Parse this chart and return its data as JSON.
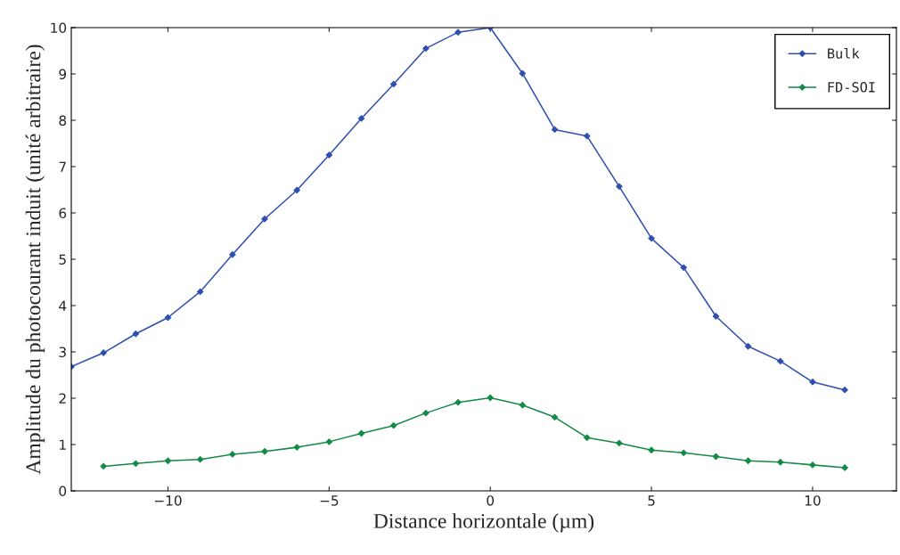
{
  "chart_data": {
    "type": "line",
    "xlabel": "Distance horizontale (µm)",
    "ylabel": "Amplitude du photocourant induit (unité arbitraire)",
    "xlim": [
      -13,
      12.6
    ],
    "ylim": [
      0,
      10
    ],
    "xticks": [
      {
        "value": -10,
        "label": "−10"
      },
      {
        "value": -5,
        "label": "−5"
      },
      0,
      5,
      10
    ],
    "yticks": [
      0,
      1,
      2,
      3,
      4,
      5,
      6,
      7,
      8,
      9,
      10
    ],
    "grid": false,
    "legend": "top right",
    "marker": "diamond",
    "line_style": "solid",
    "series": [
      {
        "name": "Bulk",
        "color": "#2f4fb0",
        "x": [
          -13,
          -12,
          -11,
          -10,
          -9,
          -8,
          -7,
          -6,
          -5,
          -4,
          -3,
          -2,
          -1,
          0,
          1,
          2,
          3,
          4,
          5,
          6,
          7,
          8,
          9,
          10,
          11
        ],
        "values": [
          2.68,
          2.98,
          3.39,
          3.74,
          4.3,
          5.1,
          5.87,
          6.49,
          7.25,
          8.04,
          8.78,
          9.55,
          9.9,
          10,
          9.01,
          7.8,
          7.66,
          6.57,
          5.45,
          4.82,
          3.77,
          3.12,
          2.8,
          2.35,
          2.18
        ]
      },
      {
        "name": "FD-SOI",
        "color": "#138a46",
        "x": [
          -12,
          -11,
          -10,
          -9,
          -8,
          -7,
          -6,
          -5,
          -4,
          -3,
          -2,
          -1,
          0,
          1,
          2,
          3,
          4,
          5,
          6,
          7,
          8,
          9,
          10,
          11
        ],
        "values": [
          0.53,
          0.59,
          0.65,
          0.68,
          0.79,
          0.85,
          0.94,
          1.06,
          1.24,
          1.41,
          1.68,
          1.91,
          2.01,
          1.85,
          1.59,
          1.15,
          1.03,
          0.88,
          0.82,
          0.74,
          0.65,
          0.62,
          0.56,
          0.5
        ]
      }
    ]
  }
}
